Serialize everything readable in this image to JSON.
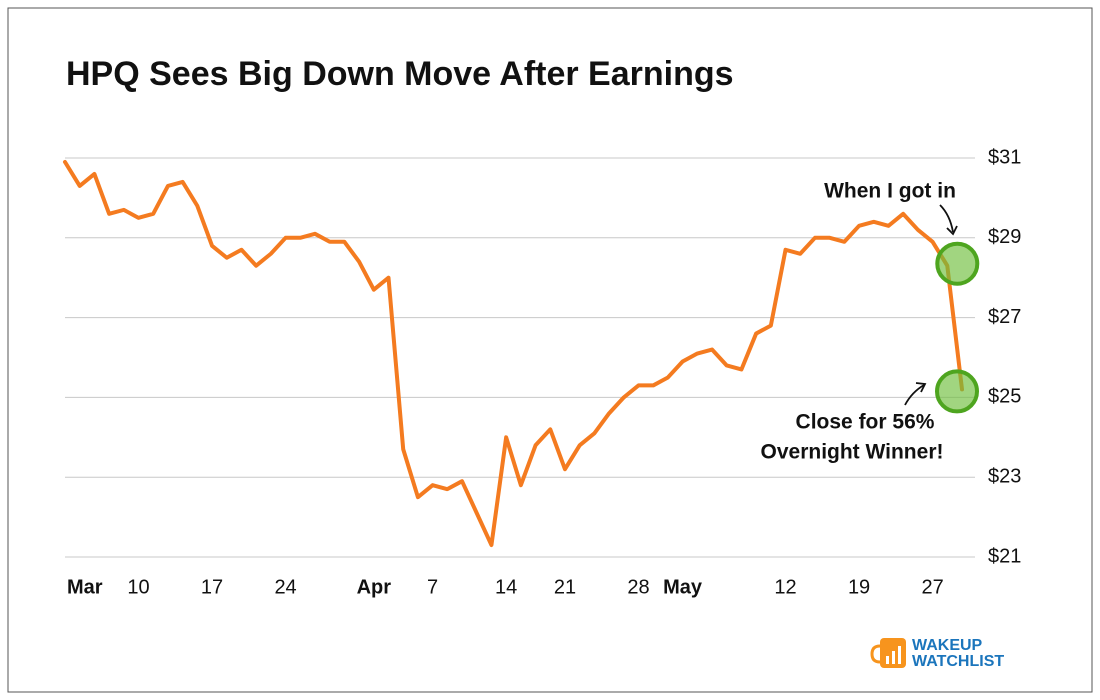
{
  "chart_data": {
    "type": "line",
    "title": "HPQ Sees Big Down Move After Earnings",
    "categories": [
      "Mar",
      null,
      null,
      null,
      null,
      "10",
      null,
      null,
      null,
      null,
      "17",
      null,
      null,
      null,
      null,
      "24",
      null,
      null,
      null,
      null,
      null,
      "Apr",
      null,
      null,
      null,
      "7",
      null,
      null,
      null,
      null,
      "14",
      null,
      null,
      null,
      "21",
      null,
      null,
      null,
      null,
      "28",
      null,
      null,
      "May",
      null,
      null,
      null,
      null,
      null,
      null,
      "12",
      null,
      null,
      null,
      null,
      "19",
      null,
      null,
      null,
      null,
      "27",
      null,
      null
    ],
    "series": [
      {
        "name": "HPQ",
        "color": "#f47b20",
        "values": [
          30.9,
          30.3,
          30.6,
          29.6,
          29.7,
          29.5,
          29.6,
          30.3,
          30.4,
          29.8,
          28.8,
          28.5,
          28.7,
          28.3,
          28.6,
          29.0,
          29.0,
          29.1,
          28.9,
          28.9,
          28.4,
          27.7,
          28.0,
          23.7,
          22.5,
          22.8,
          22.7,
          22.9,
          22.1,
          21.3,
          24.0,
          22.8,
          23.8,
          24.2,
          23.2,
          23.8,
          24.1,
          24.6,
          25.0,
          25.3,
          25.3,
          25.5,
          25.9,
          26.1,
          26.2,
          25.8,
          25.7,
          26.6,
          26.8,
          28.7,
          28.6,
          29.0,
          29.0,
          28.9,
          29.3,
          29.4,
          29.3,
          29.6,
          29.2,
          28.9,
          28.3,
          25.2
        ]
      }
    ],
    "ylim": [
      21,
      31
    ],
    "yticks": [
      {
        "value": 21,
        "label": "$21"
      },
      {
        "value": 23,
        "label": "$23"
      },
      {
        "value": 25,
        "label": "$25"
      },
      {
        "value": 27,
        "label": "$27"
      },
      {
        "value": 29,
        "label": "$29"
      },
      {
        "value": 31,
        "label": "$31"
      }
    ],
    "grid": true,
    "annotations": [
      "When I got in",
      "Close for 56%",
      "Overnight Winner!"
    ],
    "logo": [
      "WAKEUP",
      "WATCHLIST"
    ]
  }
}
